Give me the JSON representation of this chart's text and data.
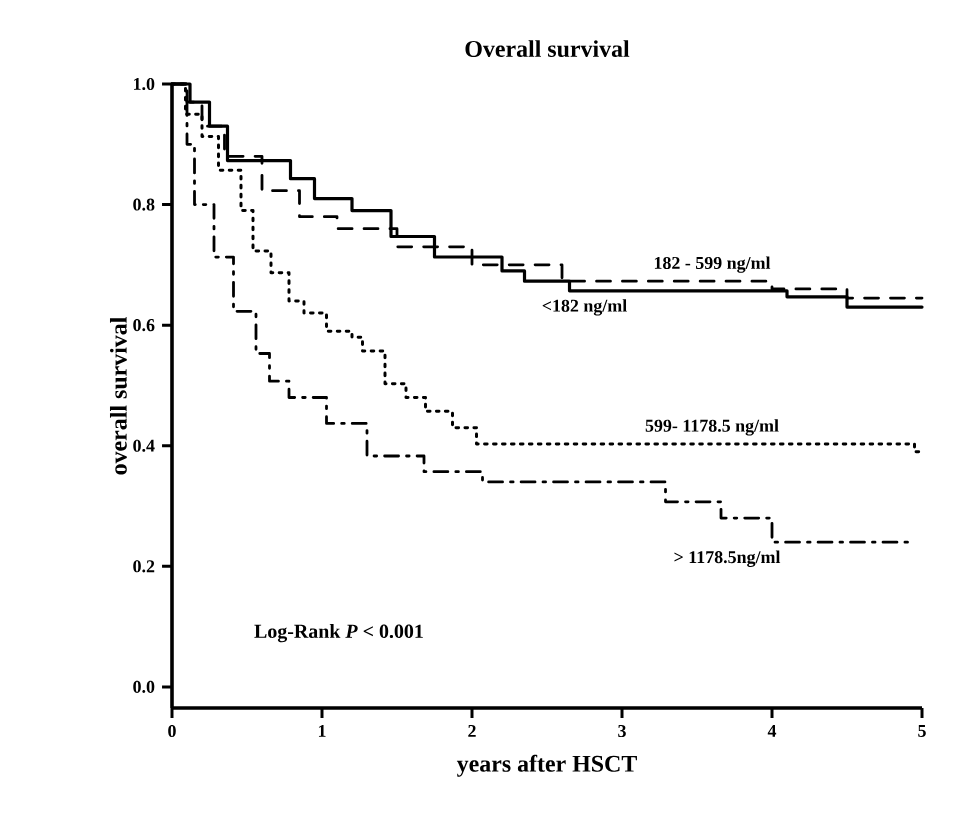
{
  "chart_data": {
    "type": "step",
    "title": "Overall survival",
    "xlabel": "years after HSCT",
    "ylabel": "overall survival",
    "xlim": [
      0,
      5
    ],
    "ylim": [
      -0.035,
      1.0
    ],
    "xticks": [
      0,
      1,
      2,
      3,
      4,
      5
    ],
    "yticks": [
      {
        "value": 0,
        "label": "0.0"
      },
      {
        "value": 0.2,
        "label": "0.2"
      },
      {
        "value": 0.4,
        "label": "0.4"
      },
      {
        "value": 0.6,
        "label": "0.6"
      },
      {
        "value": 0.8,
        "label": "0.8"
      },
      {
        "value": 1,
        "label": "1.0"
      }
    ],
    "grid": false,
    "legend": false,
    "marker": "none",
    "series": [
      {
        "name": "<182 ng/ml",
        "color": "#000000",
        "line_style": "solid",
        "x": [
          0,
          0.12,
          0.25,
          0.37,
          0.79,
          0.95,
          1.2,
          1.46,
          1.75,
          2.2,
          2.35,
          2.65,
          4.1,
          4.5,
          5
        ],
        "values": [
          1,
          0.97,
          0.93,
          0.873,
          0.843,
          0.81,
          0.79,
          0.747,
          0.713,
          0.69,
          0.673,
          0.657,
          0.647,
          0.63,
          0.63
        ]
      },
      {
        "name": "182 - 599 ng/ml",
        "color": "#000000",
        "line_style": "dashed",
        "x": [
          0,
          0.1,
          0.2,
          0.35,
          0.6,
          0.85,
          1.1,
          1.5,
          2.0,
          2.6,
          4.0,
          4.5,
          5
        ],
        "values": [
          1,
          0.97,
          0.93,
          0.88,
          0.823,
          0.78,
          0.76,
          0.73,
          0.7,
          0.673,
          0.66,
          0.645,
          0.645
        ]
      },
      {
        "name": "599- 1178.5 ng/ml",
        "color": "#000000",
        "line_style": "dotted",
        "x": [
          0,
          0.09,
          0.2,
          0.31,
          0.46,
          0.54,
          0.66,
          0.78,
          0.88,
          1.03,
          1.2,
          1.27,
          1.42,
          1.56,
          1.69,
          1.87,
          2.03,
          4.95,
          5
        ],
        "values": [
          1,
          0.95,
          0.913,
          0.857,
          0.79,
          0.723,
          0.687,
          0.64,
          0.62,
          0.59,
          0.58,
          0.557,
          0.503,
          0.48,
          0.457,
          0.43,
          0.403,
          0.39,
          0.39
        ]
      },
      {
        "name": "> 1178.5ng/ml",
        "color": "#000000",
        "line_style": "dashdot",
        "x": [
          0,
          0.1,
          0.15,
          0.28,
          0.41,
          0.56,
          0.65,
          0.78,
          1.03,
          1.3,
          1.68,
          2.07,
          2.97,
          3.29,
          3.66,
          4.0,
          4.95
        ],
        "values": [
          1,
          0.9,
          0.8,
          0.713,
          0.623,
          0.553,
          0.507,
          0.48,
          0.437,
          0.383,
          0.357,
          0.34,
          0.34,
          0.307,
          0.28,
          0.24,
          0.24
        ]
      }
    ],
    "annotations": [
      "Log-Rank *P* < 0.001"
    ]
  }
}
